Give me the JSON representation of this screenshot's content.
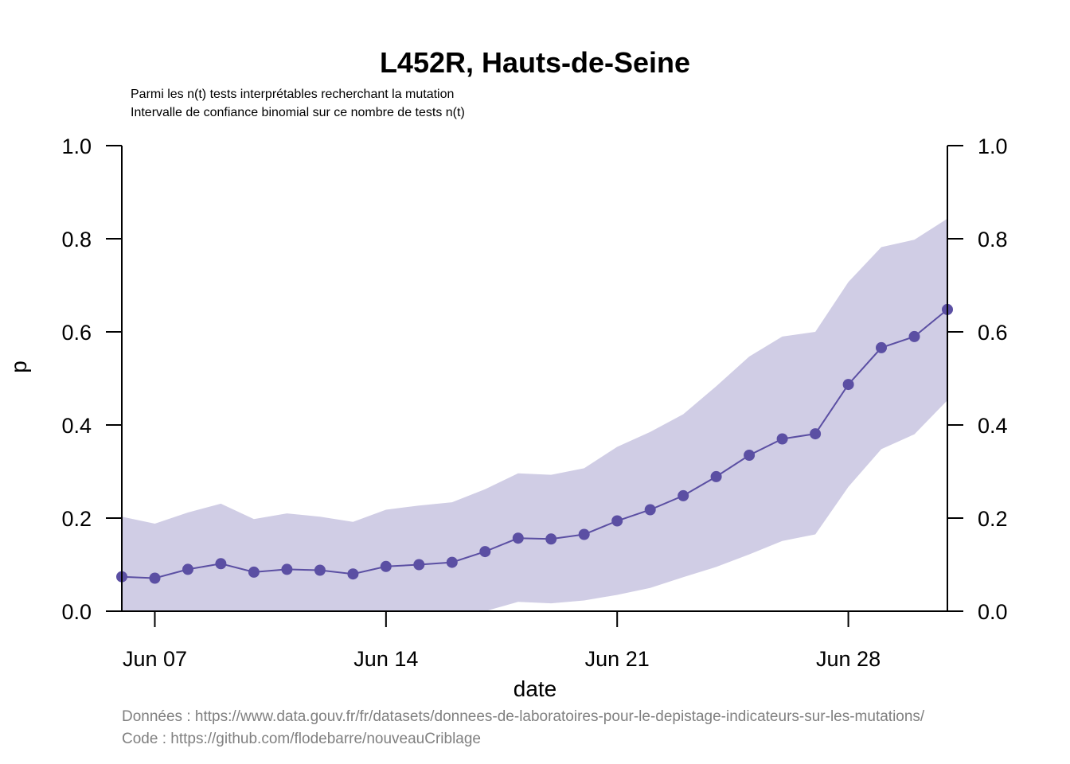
{
  "chart_data": {
    "type": "line",
    "title": "L452R, Hauts-de-Seine",
    "subtitle_lines": [
      "Parmi les n(t) tests interprétables recherchant la mutation",
      "Intervalle de confiance binomial sur ce nombre de tests n(t)"
    ],
    "xlabel": "date",
    "ylabel": "p",
    "ylim": [
      0,
      1
    ],
    "yticks": [
      "0.0",
      "0.2",
      "0.4",
      "0.6",
      "0.8",
      "1.0"
    ],
    "ytick_values": [
      0,
      0.2,
      0.4,
      0.6,
      0.8,
      1.0
    ],
    "xticks": [
      {
        "label": "Jun 07",
        "x": "2021-06-07"
      },
      {
        "label": "Jun 14",
        "x": "2021-06-14"
      },
      {
        "label": "Jun 21",
        "x": "2021-06-21"
      },
      {
        "label": "Jun 28",
        "x": "2021-06-28"
      }
    ],
    "x": [
      "2021-06-06",
      "2021-06-07",
      "2021-06-08",
      "2021-06-09",
      "2021-06-10",
      "2021-06-11",
      "2021-06-12",
      "2021-06-13",
      "2021-06-14",
      "2021-06-15",
      "2021-06-16",
      "2021-06-17",
      "2021-06-18",
      "2021-06-19",
      "2021-06-20",
      "2021-06-21",
      "2021-06-22",
      "2021-06-23",
      "2021-06-24",
      "2021-06-25",
      "2021-06-26",
      "2021-06-27",
      "2021-06-28",
      "2021-06-29",
      "2021-06-30",
      "2021-07-01"
    ],
    "series": [
      {
        "values": [
          0.074,
          0.071,
          0.09,
          0.102,
          0.084,
          0.09,
          0.088,
          0.08,
          0.096,
          0.1,
          0.105,
          0.128,
          0.157,
          0.155,
          0.165,
          0.194,
          0.218,
          0.248,
          0.289,
          0.335,
          0.37,
          0.381,
          0.487,
          0.566,
          0.59,
          0.648
        ],
        "lower": [
          0.0,
          0.0,
          0.0,
          0.0,
          0.0,
          0.0,
          0.0,
          0.0,
          0.0,
          0.0,
          0.0,
          0.0,
          0.02,
          0.017,
          0.023,
          0.035,
          0.05,
          0.073,
          0.095,
          0.122,
          0.151,
          0.165,
          0.267,
          0.348,
          0.38,
          0.453
        ],
        "upper": [
          0.203,
          0.188,
          0.212,
          0.231,
          0.198,
          0.21,
          0.203,
          0.192,
          0.218,
          0.227,
          0.234,
          0.262,
          0.296,
          0.293,
          0.307,
          0.353,
          0.385,
          0.423,
          0.483,
          0.547,
          0.59,
          0.6,
          0.707,
          0.782,
          0.798,
          0.843
        ]
      }
    ],
    "colors": {
      "line": "#5B4FA3",
      "band": "#D0CDE5"
    },
    "footer": [
      "Données : https://www.data.gouv.fr/fr/datasets/donnees-de-laboratoires-pour-le-depistage-indicateurs-sur-les-mutations/",
      "Code : https://github.com/flodebarre/nouveauCriblage"
    ]
  }
}
